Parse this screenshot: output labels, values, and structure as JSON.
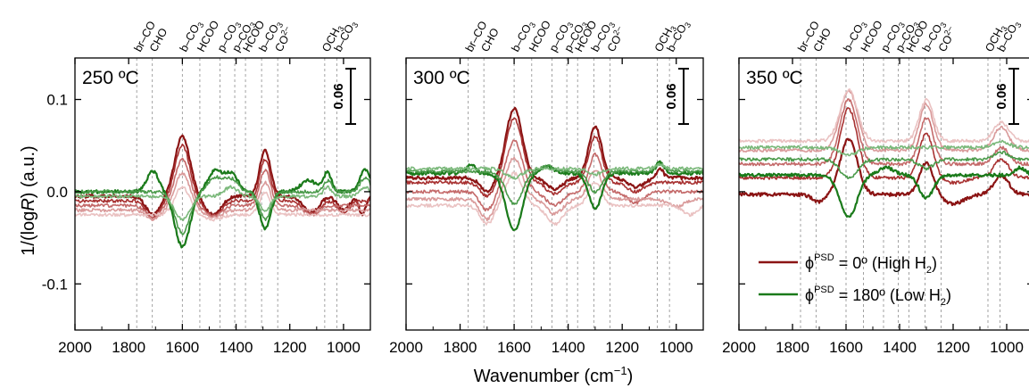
{
  "chart_data": {
    "type": "line",
    "ylabel_main": "1/(log",
    "ylabel_italic": "R",
    "ylabel_tail": ") (a.u.)",
    "xlabel_main": "Wavenumber (cm",
    "xlabel_sup": "−1",
    "xlabel_tail": ")",
    "xlim": [
      2000,
      900
    ],
    "ylim": [
      -0.15,
      0.145
    ],
    "xticks": [
      2000,
      1800,
      1600,
      1400,
      1200,
      1000
    ],
    "yticks": [
      0.1,
      0.0,
      -0.1
    ],
    "ytick_labels": [
      "0.1",
      "0.0",
      "-0.1"
    ],
    "scale_bar": {
      "label": "0.06",
      "size": 0.06
    },
    "legend": {
      "entries": [
        {
          "phi": "ϕ",
          "sup": "PSD",
          "text_a": " = 0º (High H",
          "sub": "2",
          "text_b": ")",
          "color": "#8b1414"
        },
        {
          "phi": "ϕ",
          "sup": "PSD",
          "text_a": " = 180º (Low H",
          "sub": "2",
          "text_b": ")",
          "color": "#1a7a1a"
        }
      ]
    },
    "assignments": [
      {
        "base": "br–CO",
        "wn": 1770
      },
      {
        "base": "CHO",
        "wn": 1712
      },
      {
        "base": "b–CO",
        "sub": "3",
        "wn": 1600
      },
      {
        "base": "HCOO",
        "wn": 1535
      },
      {
        "base": "p–CO",
        "sub": "3",
        "wn": 1460
      },
      {
        "base": "p–CO",
        "sub": "3",
        "wn": 1405
      },
      {
        "base": "HCOO",
        "wn": 1365
      },
      {
        "base": "b–CO",
        "sub": "3",
        "wn": 1305
      },
      {
        "base": "CO",
        "sup": "2–",
        "wn": 1245
      },
      {
        "base": "OCH",
        "sub": "3",
        "wn": 1070
      },
      {
        "base": "b–CO",
        "sub": "3",
        "wn": 1025
      }
    ],
    "panels": [
      {
        "title": "250 ºC",
        "series": [
          {
            "color": "#8b1414",
            "width": 2.2,
            "offset": -0.005,
            "slope": 0.0,
            "peaks": [
              [
                1600,
                0.065,
                28
              ],
              [
                1292,
                0.05,
                20
              ],
              [
                1710,
                -0.02,
                25
              ],
              [
                1485,
                -0.02,
                30
              ],
              [
                1120,
                -0.018,
                28
              ],
              [
                1000,
                -0.015,
                22
              ],
              [
                930,
                -0.02,
                12
              ]
            ]
          },
          {
            "color": "#a83232",
            "width": 1.6,
            "offset": -0.01,
            "slope": 0.0,
            "peaks": [
              [
                1600,
                0.06,
                28
              ],
              [
                1292,
                0.045,
                20
              ],
              [
                1710,
                -0.018,
                25
              ],
              [
                1485,
                -0.016,
                30
              ],
              [
                1120,
                -0.014,
                28
              ],
              [
                1000,
                -0.012,
                22
              ]
            ]
          },
          {
            "color": "#c46a6a",
            "width": 1.6,
            "offset": -0.015,
            "slope": 0.0,
            "peaks": [
              [
                1600,
                0.05,
                28
              ],
              [
                1292,
                0.038,
                20
              ],
              [
                1710,
                -0.014,
                25
              ],
              [
                1485,
                -0.012,
                30
              ],
              [
                1120,
                -0.01,
                28
              ]
            ]
          },
          {
            "color": "#d99a9a",
            "width": 1.6,
            "offset": -0.02,
            "slope": 0.0,
            "peaks": [
              [
                1600,
                0.04,
                28
              ],
              [
                1292,
                0.03,
                20
              ],
              [
                1710,
                -0.01,
                25
              ],
              [
                1485,
                -0.008,
                30
              ]
            ]
          },
          {
            "color": "#eac2c2",
            "width": 1.6,
            "offset": -0.025,
            "slope": 0.0,
            "peaks": [
              [
                1600,
                0.03,
                28
              ],
              [
                1292,
                0.024,
                20
              ],
              [
                1485,
                -0.005,
                30
              ]
            ]
          },
          {
            "color": "#1a7a1a",
            "width": 2.2,
            "offset": 0.0,
            "slope": 0.0,
            "peaks": [
              [
                1600,
                -0.06,
                28
              ],
              [
                1292,
                -0.04,
                20
              ],
              [
                1710,
                0.022,
                22
              ],
              [
                1480,
                0.022,
                25
              ],
              [
                1420,
                0.02,
                25
              ],
              [
                1130,
                0.012,
                30
              ],
              [
                1060,
                0.02,
                15
              ],
              [
                920,
                0.025,
                18
              ]
            ]
          },
          {
            "color": "#4a9a4a",
            "width": 1.6,
            "offset": 0.0,
            "slope": 0.0,
            "peaks": [
              [
                1600,
                -0.045,
                28
              ],
              [
                1292,
                -0.03,
                20
              ],
              [
                1480,
                0.015,
                25
              ],
              [
                1420,
                0.014,
                25
              ],
              [
                1060,
                0.012,
                15
              ],
              [
                920,
                0.015,
                18
              ]
            ]
          },
          {
            "color": "#7ab87a",
            "width": 1.6,
            "offset": -0.005,
            "slope": 0.0,
            "peaks": [
              [
                1600,
                -0.025,
                28
              ],
              [
                1292,
                -0.015,
                20
              ],
              [
                1420,
                0.01,
                25
              ],
              [
                1060,
                0.01,
                15
              ],
              [
                920,
                0.01,
                18
              ]
            ]
          }
        ]
      },
      {
        "title": "300 ºC",
        "series": [
          {
            "color": "#8b1414",
            "width": 2.2,
            "offset": 0.015,
            "slope": 0.0,
            "peaks": [
              [
                1600,
                0.075,
                30
              ],
              [
                1300,
                0.055,
                24
              ],
              [
                1700,
                -0.015,
                25
              ],
              [
                1450,
                -0.012,
                30
              ],
              [
                1150,
                -0.01,
                30
              ],
              [
                1060,
                0.01,
                12
              ]
            ]
          },
          {
            "color": "#a83232",
            "width": 1.6,
            "offset": 0.01,
            "slope": 0.0,
            "peaks": [
              [
                1600,
                0.07,
                30
              ],
              [
                1300,
                0.05,
                24
              ],
              [
                1700,
                -0.015,
                25
              ],
              [
                1450,
                -0.012,
                30
              ],
              [
                1150,
                -0.01,
                30
              ]
            ]
          },
          {
            "color": "#c46a6a",
            "width": 1.6,
            "offset": 0.0,
            "slope": 0.0,
            "peaks": [
              [
                1600,
                0.055,
                30
              ],
              [
                1300,
                0.04,
                24
              ],
              [
                1700,
                -0.02,
                25
              ],
              [
                1450,
                -0.015,
                30
              ],
              [
                1150,
                -0.012,
                30
              ]
            ]
          },
          {
            "color": "#d99a9a",
            "width": 1.6,
            "offset": -0.008,
            "slope": 0.0,
            "peaks": [
              [
                1600,
                0.045,
                30
              ],
              [
                1300,
                0.032,
                24
              ],
              [
                1700,
                -0.022,
                25
              ],
              [
                1450,
                -0.016,
                30
              ],
              [
                1000,
                -0.008,
                30
              ]
            ]
          },
          {
            "color": "#eac2c2",
            "width": 1.6,
            "offset": -0.015,
            "slope": 0.0,
            "peaks": [
              [
                1600,
                0.035,
                30
              ],
              [
                1300,
                0.025,
                24
              ],
              [
                1700,
                -0.02,
                25
              ],
              [
                1450,
                -0.02,
                30
              ],
              [
                950,
                -0.01,
                25
              ]
            ]
          },
          {
            "color": "#1a7a1a",
            "width": 2.2,
            "offset": 0.02,
            "slope": 0.0,
            "peaks": [
              [
                1600,
                -0.062,
                30
              ],
              [
                1300,
                -0.038,
                24
              ],
              [
                1760,
                0.01,
                15
              ],
              [
                1480,
                0.008,
                25
              ],
              [
                1060,
                0.012,
                15
              ]
            ]
          },
          {
            "color": "#4a9a4a",
            "width": 1.6,
            "offset": 0.022,
            "slope": 0.0,
            "peaks": [
              [
                1600,
                -0.035,
                30
              ],
              [
                1300,
                -0.022,
                24
              ],
              [
                1480,
                0.006,
                25
              ],
              [
                1060,
                0.008,
                15
              ]
            ]
          },
          {
            "color": "#7ab87a",
            "width": 1.6,
            "offset": 0.025,
            "slope": 0.0,
            "peaks": [
              [
                1600,
                -0.01,
                30
              ],
              [
                1300,
                -0.006,
                24
              ],
              [
                1060,
                0.005,
                15
              ]
            ]
          }
        ]
      },
      {
        "title": "350 ºC",
        "series": [
          {
            "color": "#8b1414",
            "width": 2.2,
            "offset": -0.003,
            "slope": 0.0,
            "peaks": [
              [
                1590,
                0.06,
                32
              ],
              [
                1300,
                0.035,
                26
              ],
              [
                1700,
                -0.008,
                25
              ],
              [
                1200,
                -0.01,
                40
              ],
              [
                1020,
                0.02,
                28
              ]
            ]
          },
          {
            "color": "#a83232",
            "width": 1.6,
            "offset": 0.015,
            "slope": 0.0,
            "peaks": [
              [
                1590,
                0.075,
                32
              ],
              [
                1300,
                0.048,
                26
              ],
              [
                1200,
                -0.005,
                40
              ],
              [
                1020,
                0.02,
                28
              ]
            ]
          },
          {
            "color": "#c46a6a",
            "width": 1.6,
            "offset": 0.03,
            "slope": 0.0,
            "peaks": [
              [
                1590,
                0.07,
                32
              ],
              [
                1300,
                0.05,
                26
              ],
              [
                1020,
                0.018,
                28
              ]
            ]
          },
          {
            "color": "#d99a9a",
            "width": 1.6,
            "offset": 0.045,
            "slope": 0.0,
            "peaks": [
              [
                1590,
                0.065,
                32
              ],
              [
                1300,
                0.05,
                26
              ],
              [
                1020,
                0.025,
                28
              ]
            ]
          },
          {
            "color": "#eac2c2",
            "width": 1.6,
            "offset": 0.055,
            "slope": 0.0,
            "peaks": [
              [
                1590,
                0.055,
                32
              ],
              [
                1300,
                0.045,
                26
              ],
              [
                1020,
                0.02,
                28
              ]
            ]
          },
          {
            "color": "#1a7a1a",
            "width": 2.2,
            "offset": 0.018,
            "slope": 0.0,
            "peaks": [
              [
                1590,
                -0.045,
                32
              ],
              [
                1300,
                -0.025,
                26
              ],
              [
                1450,
                0.008,
                30
              ],
              [
                950,
                0.008,
                20
              ]
            ]
          },
          {
            "color": "#4a9a4a",
            "width": 1.6,
            "offset": 0.035,
            "slope": 0.0,
            "peaks": [
              [
                1590,
                -0.02,
                32
              ],
              [
                1300,
                -0.01,
                26
              ],
              [
                1020,
                0.008,
                28
              ]
            ]
          },
          {
            "color": "#7ab87a",
            "width": 1.6,
            "offset": 0.048,
            "slope": 0.0,
            "peaks": [
              [
                1590,
                -0.008,
                32
              ],
              [
                1020,
                0.006,
                28
              ]
            ]
          }
        ]
      }
    ]
  }
}
